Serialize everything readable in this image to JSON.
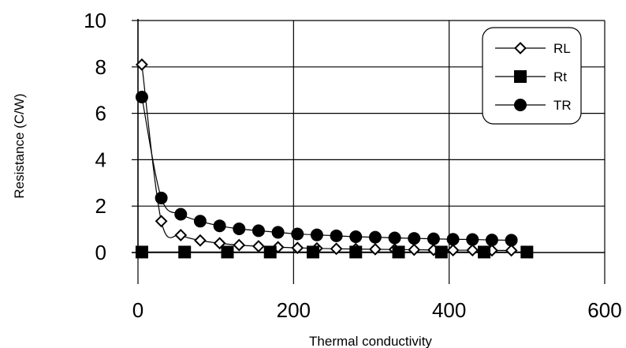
{
  "chart_data": {
    "type": "line",
    "xlabel": "Thermal conductivity",
    "ylabel": "Resistance (C/W)",
    "xlim": [
      0,
      600
    ],
    "ylim": [
      0,
      10
    ],
    "x_ticks": [
      "0",
      "200",
      "400",
      "600"
    ],
    "y_ticks": [
      "0",
      "2",
      "4",
      "6",
      "8",
      "10"
    ],
    "grid": true,
    "legend_position": "top-right",
    "series": [
      {
        "name": "RL",
        "marker": "diamond-open",
        "x": [
          5,
          30,
          55,
          80,
          105,
          130,
          155,
          180,
          205,
          230,
          255,
          280,
          305,
          330,
          355,
          380,
          405,
          430,
          455,
          480
        ],
        "y": [
          8.1,
          1.35,
          0.75,
          0.52,
          0.4,
          0.32,
          0.27,
          0.23,
          0.2,
          0.18,
          0.16,
          0.15,
          0.14,
          0.13,
          0.12,
          0.11,
          0.1,
          0.1,
          0.09,
          0.09
        ]
      },
      {
        "name": "Rt",
        "marker": "square-filled",
        "x": [
          5,
          60,
          115,
          170,
          225,
          280,
          335,
          390,
          445,
          500
        ],
        "y": [
          0.02,
          0.02,
          0.02,
          0.02,
          0.02,
          0.02,
          0.02,
          0.02,
          0.02,
          0.02
        ]
      },
      {
        "name": "TR",
        "marker": "circle-filled",
        "x": [
          5,
          30,
          55,
          80,
          105,
          130,
          155,
          180,
          205,
          230,
          255,
          280,
          305,
          330,
          355,
          380,
          405,
          430,
          455,
          480
        ],
        "y": [
          6.7,
          2.35,
          1.65,
          1.35,
          1.15,
          1.02,
          0.94,
          0.87,
          0.8,
          0.76,
          0.72,
          0.68,
          0.66,
          0.63,
          0.61,
          0.59,
          0.57,
          0.56,
          0.54,
          0.53
        ]
      }
    ]
  }
}
